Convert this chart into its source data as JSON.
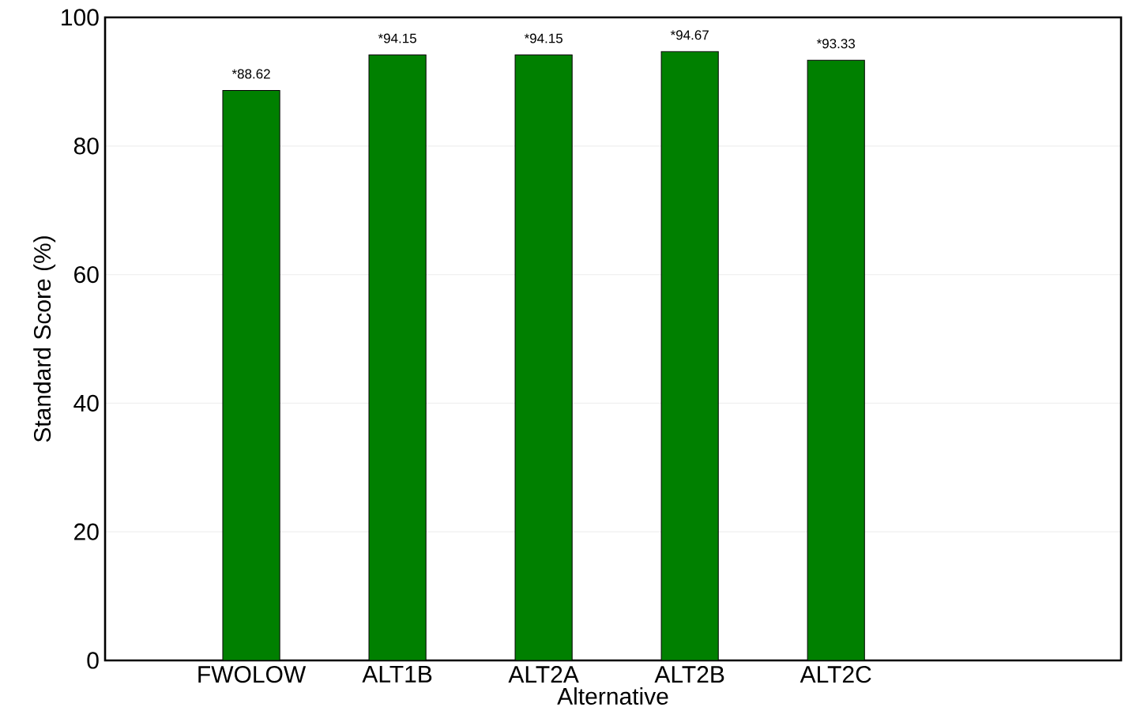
{
  "chart_data": {
    "type": "bar",
    "xlabel": "Alternative",
    "ylabel": "Standard Score (%)",
    "categories": [
      "FWOLOW",
      "ALT1B",
      "ALT2A",
      "ALT2B",
      "ALT2C"
    ],
    "values": [
      88.62,
      94.15,
      94.15,
      94.67,
      93.33
    ],
    "value_labels": [
      "*88.62",
      "*94.15",
      "*94.15",
      "*94.67",
      "*93.33"
    ],
    "color": "#008000",
    "ylim": [
      0,
      100
    ],
    "yticks": [
      0,
      20,
      40,
      60,
      80,
      100
    ],
    "grid": "y"
  }
}
